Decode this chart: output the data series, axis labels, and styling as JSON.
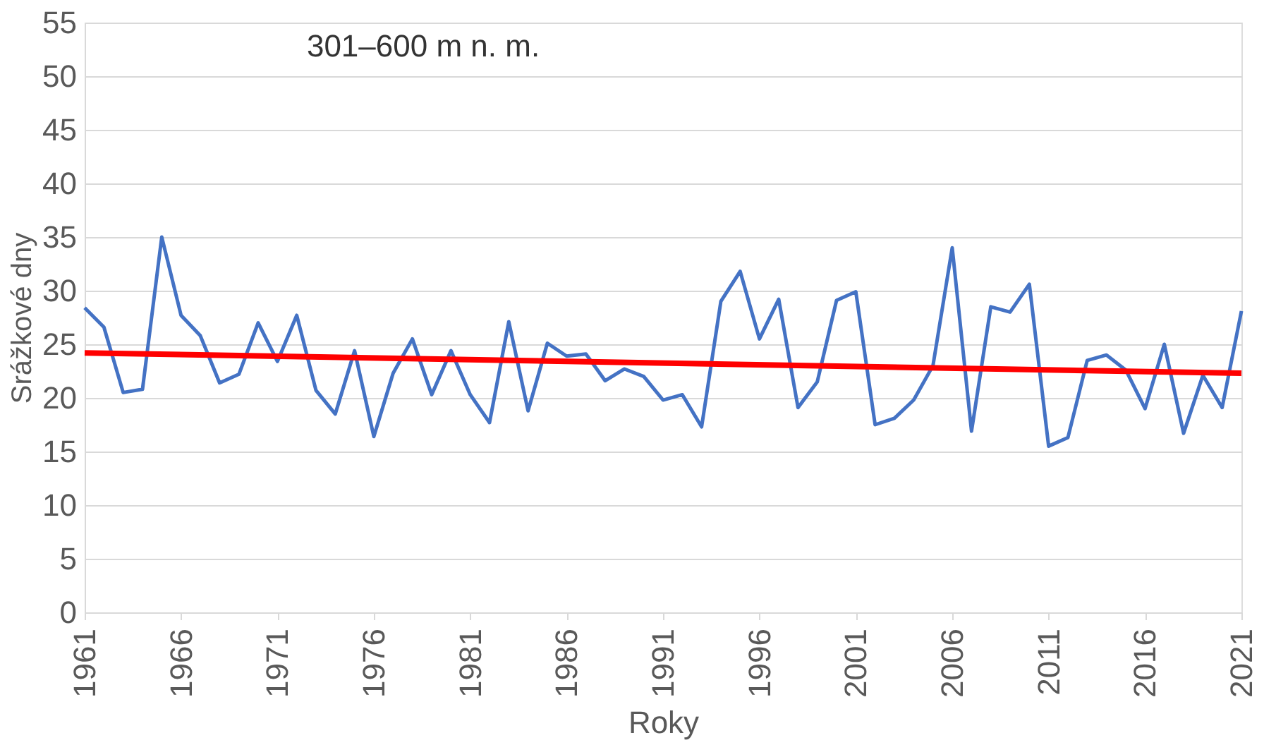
{
  "chart_data": {
    "type": "line",
    "title": "301–600 m n. m.",
    "xlabel": "Roky",
    "ylabel": "Srážkové dny",
    "x": [
      1961,
      1962,
      1963,
      1964,
      1965,
      1966,
      1967,
      1968,
      1969,
      1970,
      1971,
      1972,
      1973,
      1974,
      1975,
      1976,
      1977,
      1978,
      1979,
      1980,
      1981,
      1982,
      1983,
      1984,
      1985,
      1986,
      1987,
      1988,
      1989,
      1990,
      1991,
      1992,
      1993,
      1994,
      1995,
      1996,
      1997,
      1998,
      1999,
      2000,
      2001,
      2002,
      2003,
      2004,
      2005,
      2006,
      2007,
      2008,
      2009,
      2010,
      2011,
      2012,
      2013,
      2014,
      2015,
      2016,
      2017,
      2018,
      2019,
      2020,
      2021
    ],
    "series": [
      {
        "color": "#4472c4",
        "values": [
          28.4,
          26.6,
          20.5,
          20.8,
          35,
          27.7,
          25.8,
          21.4,
          22.2,
          27,
          23.4,
          27.7,
          20.7,
          18.5,
          24.4,
          16.4,
          22.3,
          25.5,
          20.3,
          24.4,
          20.3,
          17.7,
          27.1,
          18.8,
          25.1,
          23.9,
          24.1,
          21.6,
          22.7,
          22,
          19.8,
          20.3,
          17.3,
          29,
          31.8,
          25.5,
          29.2,
          19.1,
          21.5,
          29.1,
          29.9,
          17.5,
          18.1,
          19.8,
          23,
          34,
          16.9,
          28.5,
          28,
          30.6,
          15.5,
          16.3,
          23.5,
          24,
          22.6,
          19,
          25,
          16.7,
          22.1,
          19.1,
          28.1
        ]
      },
      {
        "type": "line",
        "color": "#ff0000",
        "x": [
          1961,
          2021
        ],
        "values": [
          24.2,
          22.3
        ]
      }
    ],
    "xlim": [
      1961,
      2021
    ],
    "xticks": [
      1961,
      1966,
      1971,
      1976,
      1981,
      1986,
      1991,
      1996,
      2001,
      2006,
      2011,
      2016,
      2021
    ],
    "ylim": [
      0,
      55
    ],
    "yticks": [
      0,
      5,
      10,
      15,
      20,
      25,
      30,
      35,
      40,
      45,
      50,
      55
    ],
    "grid": "y",
    "marker": "none",
    "line_style": "solid"
  }
}
